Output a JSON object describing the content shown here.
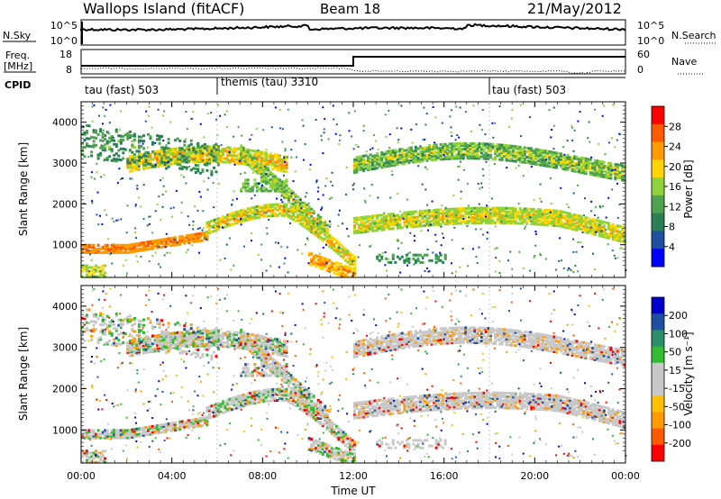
{
  "header": {
    "station": "Wallops Island (fitACF)",
    "beam": "Beam 18",
    "date": "21/May/2012"
  },
  "summary": {
    "nsky_label": "N.Sky",
    "nsearch_label": "N.Search",
    "nsky_ticks": [
      "10^5",
      "10^0"
    ],
    "nsearch_ticks": [
      "10^5",
      "10^0"
    ],
    "freq_label_1": "Freq.",
    "freq_label_2": "[MHz]",
    "freq_ticks": [
      "18",
      "8"
    ],
    "nave_label": "Nave",
    "nave_ticks": [
      "60",
      "0"
    ],
    "cpid_label": "CPID",
    "cpid_segments": [
      {
        "label": "tau (fast) 503",
        "start_hour": 0
      },
      {
        "label": "themis (tau) 3310",
        "start_hour": 6
      },
      {
        "label": "tau (fast) 503",
        "start_hour": 18
      }
    ]
  },
  "chart_data": [
    {
      "type": "heatmap",
      "ylabel": "Slant Range [km]",
      "xlabel": "",
      "ylim": [
        200,
        4500
      ],
      "yticks": [
        "4000",
        "3000",
        "2000",
        "1000"
      ],
      "xlim": [
        0,
        24
      ],
      "colorbar_label": "Power [dB]",
      "colorbar_ticks": [
        "28",
        "24",
        "20",
        "16",
        "12",
        "8",
        "4"
      ],
      "colors": [
        "#0000ff",
        "#1e4fa0",
        "#2a7f55",
        "#4fa24f",
        "#8fd23a",
        "#ffd400",
        "#ff9a00",
        "#ff5a00",
        "#ff0000"
      ]
    },
    {
      "type": "heatmap",
      "ylabel": "Slant Range [km]",
      "xlabel": "Time UT",
      "ylim": [
        200,
        4500
      ],
      "yticks": [
        "4000",
        "3000",
        "2000",
        "1000"
      ],
      "xlim": [
        0,
        24
      ],
      "xticks": [
        "00:00",
        "04:00",
        "08:00",
        "12:00",
        "16:00",
        "20:00",
        "00:00"
      ],
      "colorbar_label": "Velocity [m s⁻¹]",
      "colorbar_ticks": [
        "200",
        "100",
        "50",
        "15",
        "-15",
        "-50",
        "-100",
        "-200"
      ],
      "colors": [
        "#ff0000",
        "#ff5a00",
        "#ff9a00",
        "#ffc000",
        "#c8c8c8",
        "#c8c8c8",
        "#33bb33",
        "#2a8f6a",
        "#1e4fa0",
        "#0000cc"
      ]
    }
  ]
}
